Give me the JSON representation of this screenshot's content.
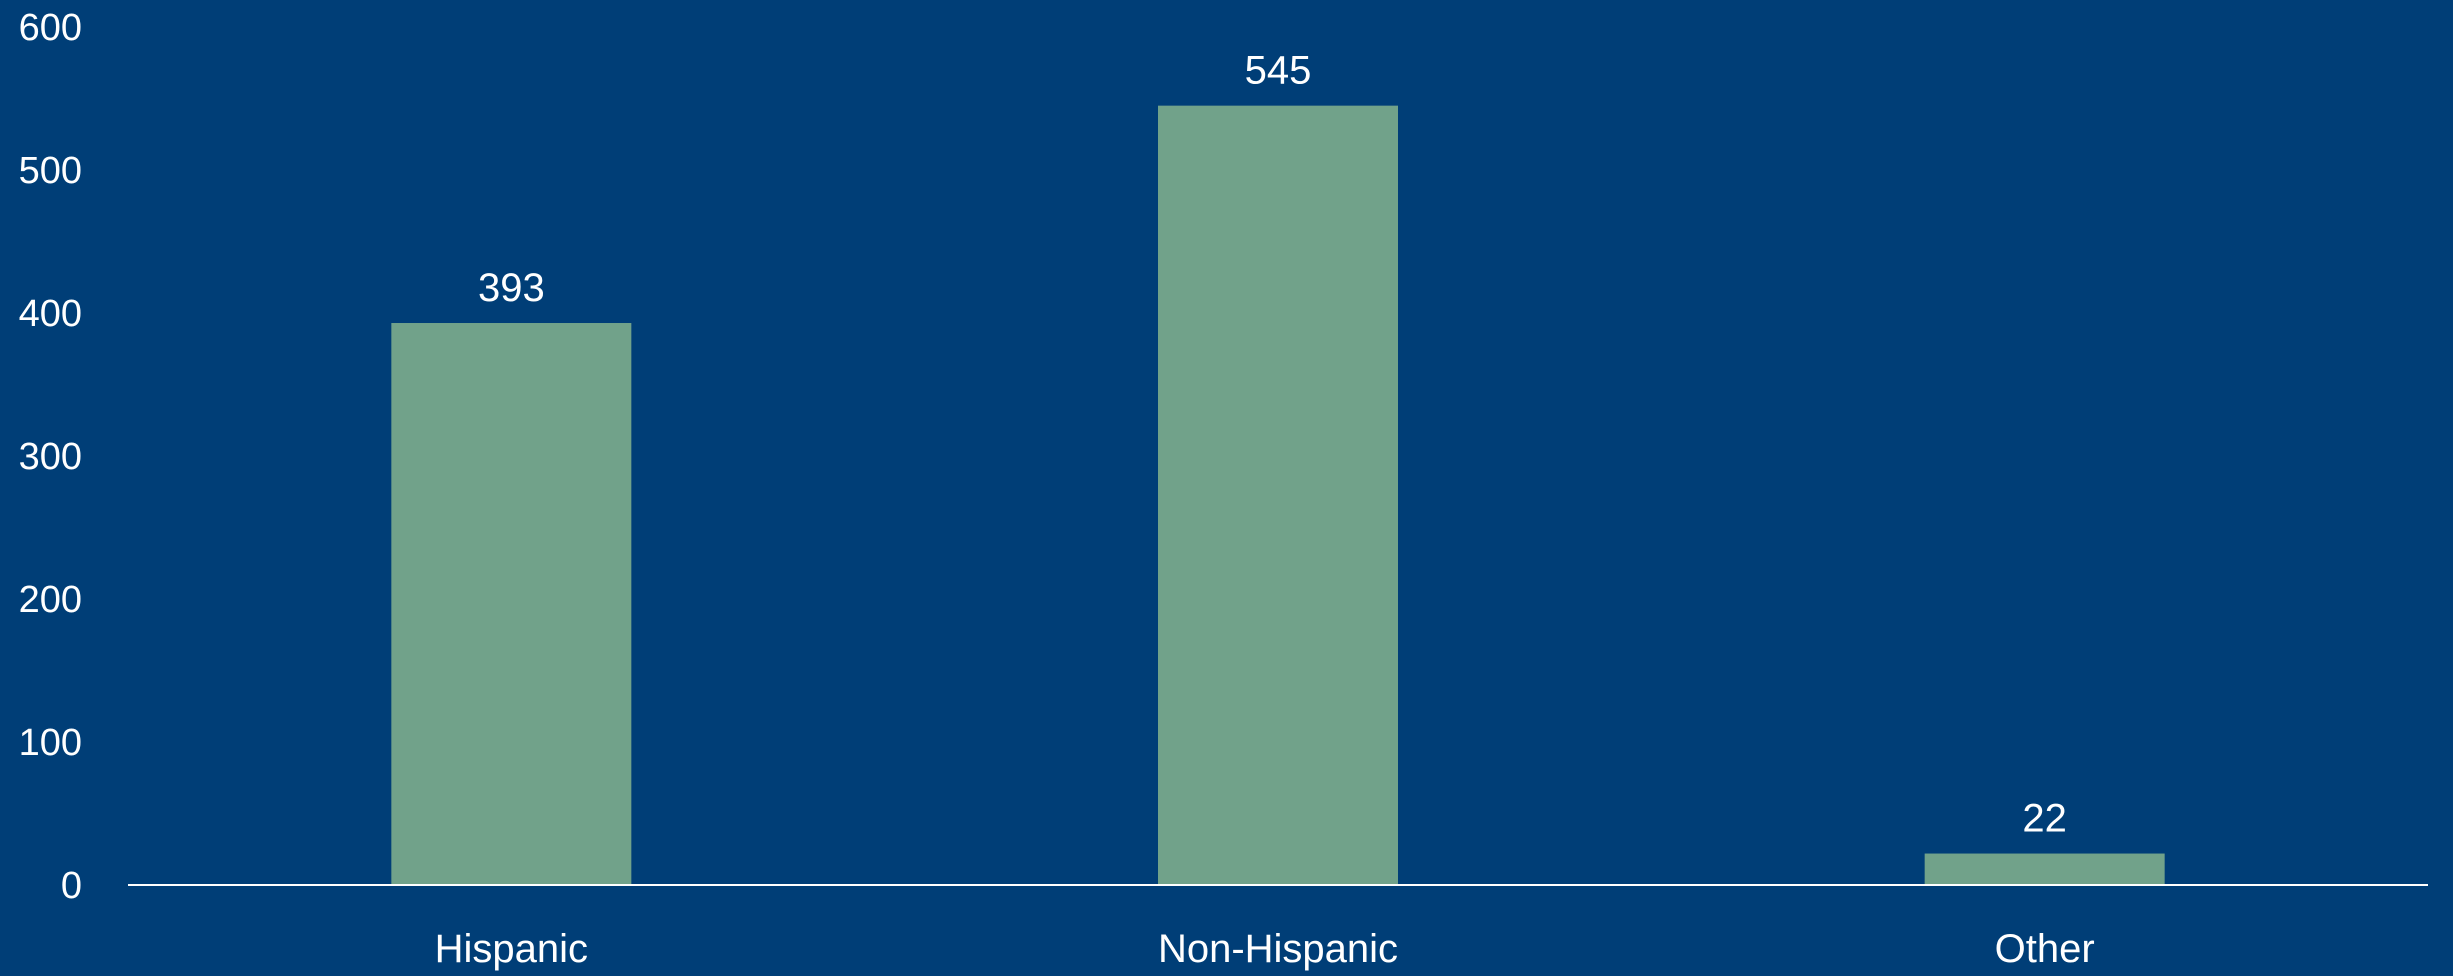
{
  "colors": {
    "background": "#003e77",
    "bar": "#71a28a",
    "text": "#ffffff",
    "baseline": "#ffffff"
  },
  "chart_data": {
    "type": "bar",
    "categories": [
      "Hispanic",
      "Non-Hispanic",
      "Other"
    ],
    "values": [
      393,
      545,
      22
    ],
    "data_labels": [
      "393",
      "545",
      "22"
    ],
    "y_ticks": [
      "0",
      "100",
      "200",
      "300",
      "400",
      "500",
      "600"
    ],
    "ylim": [
      0,
      600
    ],
    "title": "",
    "xlabel": "",
    "ylabel": "",
    "grid": false,
    "legend": "none"
  }
}
